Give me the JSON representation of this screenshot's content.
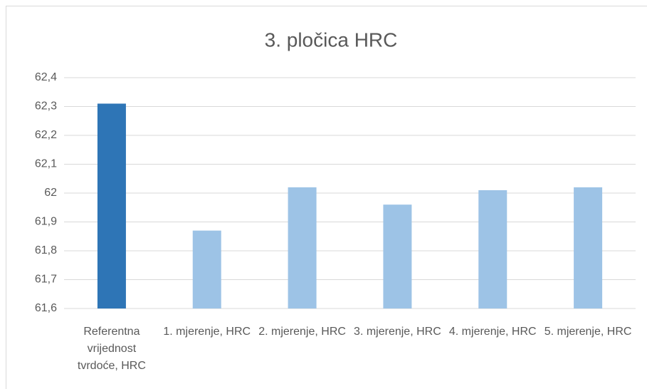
{
  "chart_data": {
    "type": "bar",
    "title": "3. pločica HRC",
    "categories": [
      "Referentna vrijednost tvrdoće, HRC",
      "1. mjerenje, HRC",
      "2. mjerenje, HRC",
      "3. mjerenje, HRC",
      "4. mjerenje, HRC",
      "5. mjerenje, HRC"
    ],
    "values": [
      62.31,
      61.87,
      62.02,
      61.96,
      62.01,
      62.02
    ],
    "colors": [
      "#2e75b6",
      "#9dc3e6",
      "#9dc3e6",
      "#9dc3e6",
      "#9dc3e6",
      "#9dc3e6"
    ],
    "ylim": [
      61.6,
      62.4
    ],
    "yticks": [
      {
        "value": 61.6,
        "label": "61,6"
      },
      {
        "value": 61.7,
        "label": "61,7"
      },
      {
        "value": 61.8,
        "label": "61,8"
      },
      {
        "value": 61.9,
        "label": "61,9"
      },
      62,
      {
        "value": 62.1,
        "label": "62,1"
      },
      {
        "value": 62.2,
        "label": "62,2"
      },
      {
        "value": 62.3,
        "label": "62,3"
      },
      {
        "value": 62.4,
        "label": "62,4"
      }
    ],
    "grid": true
  }
}
